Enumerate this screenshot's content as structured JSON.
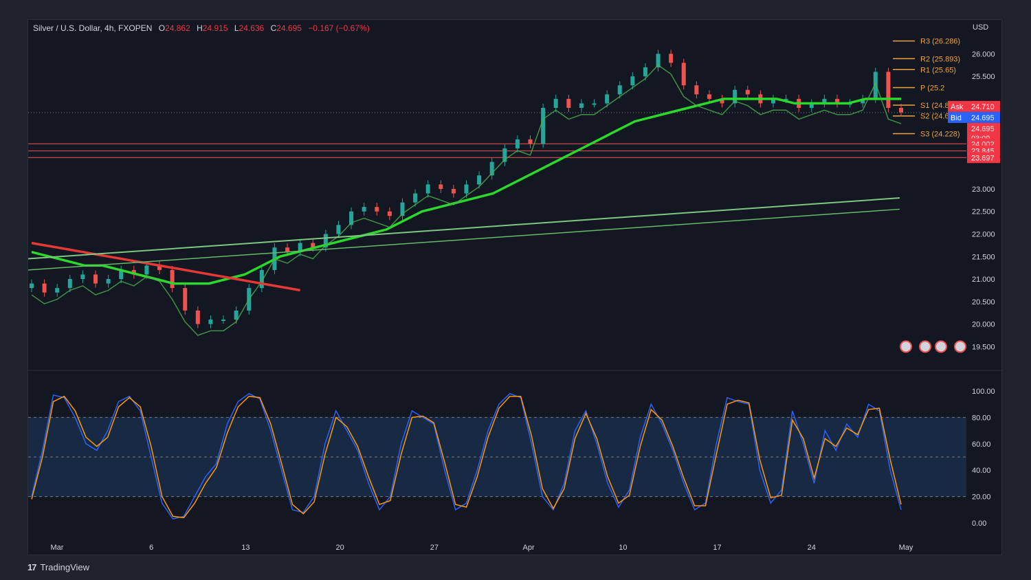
{
  "legend": {
    "symbol": "Silver / U.S. Dollar, 4h, FXOPEN",
    "o_label": "O",
    "o_value": "24.862",
    "h_label": "H",
    "h_value": "24.915",
    "l_label": "L",
    "l_value": "24.636",
    "c_label": "C",
    "c_value": "24.695",
    "change": "−0.167 (−0.67%)"
  },
  "currency": "USD",
  "brand": {
    "logo": "17",
    "name": "TradingView"
  },
  "colors": {
    "background": "#131722",
    "up": "#26a69a",
    "down": "#ef5350",
    "pivot": "#f0a33c",
    "ask": "#f23645",
    "bid": "#2962ff",
    "stoch_k": "#2962ff",
    "stoch_d": "#ff9800"
  },
  "chart_data": [
    {
      "type": "line",
      "title": "Silver / U.S. Dollar, 4h, FXOPEN",
      "x_labels": [
        "Mar",
        "6",
        "13",
        "20",
        "27",
        "Apr",
        "10",
        "17",
        "24",
        "May"
      ],
      "y_ticks": [
        "19.500",
        "20.000",
        "20.500",
        "21.000",
        "21.500",
        "22.000",
        "22.500",
        "23.000",
        "25.500",
        "26.000"
      ],
      "ylim": [
        19.2,
        26.6
      ],
      "price_close": [
        20.9,
        20.7,
        20.8,
        21.0,
        21.1,
        20.9,
        21.0,
        21.2,
        21.1,
        21.3,
        21.2,
        20.8,
        20.3,
        20.0,
        20.1,
        20.1,
        20.3,
        20.8,
        21.2,
        21.7,
        21.6,
        21.8,
        21.7,
        22.0,
        22.2,
        22.5,
        22.6,
        22.5,
        22.4,
        22.7,
        22.9,
        23.1,
        23.0,
        22.9,
        23.1,
        23.3,
        23.6,
        23.9,
        24.1,
        24.0,
        24.8,
        25.0,
        24.8,
        24.9,
        24.9,
        25.1,
        25.3,
        25.5,
        25.7,
        26.0,
        25.8,
        25.3,
        25.1,
        25.0,
        24.9,
        25.2,
        25.1,
        24.9,
        25.0,
        25.0,
        24.8,
        24.9,
        25.0,
        24.9,
        24.9,
        25.0,
        25.6,
        24.8,
        24.7
      ],
      "ema_slow": [
        21.6,
        21.5,
        21.4,
        21.3,
        21.3,
        21.2,
        21.1,
        21.0,
        20.9,
        20.9,
        20.9,
        21.0,
        21.1,
        21.3,
        21.5,
        21.6,
        21.7,
        21.8,
        21.9,
        22.0,
        22.1,
        22.3,
        22.5,
        22.6,
        22.7,
        22.8,
        22.9,
        23.1,
        23.3,
        23.5,
        23.7,
        23.9,
        24.1,
        24.3,
        24.5,
        24.6,
        24.7,
        24.8,
        24.9,
        25.0,
        25.0,
        25.0,
        25.0,
        24.9,
        24.9,
        24.9,
        24.9,
        25.0,
        25.0,
        25.0
      ],
      "sma_long_a": [
        21.45,
        22.8
      ],
      "sma_long_b": [
        21.2,
        22.55
      ],
      "horizontal_levels": [
        "24.002",
        "23.845",
        "23.697"
      ],
      "pivots": [
        {
          "label": "R3 (26.286)",
          "value": 26.286
        },
        {
          "label": "R2 (25.893)",
          "value": 25.893
        },
        {
          "label": "R1 (25.65)",
          "value": 25.65
        },
        {
          "label": "P (25.2",
          "value": 25.25
        },
        {
          "label": "S1 (24.8",
          "value": 24.86
        },
        {
          "label": "S2 (24.621)",
          "value": 24.621
        },
        {
          "label": "S3 (24.228)",
          "value": 24.228
        }
      ],
      "price_tags": [
        {
          "label": "Ask",
          "value": "24.710"
        },
        {
          "label": "Bid",
          "value": "24.695"
        },
        {
          "label": "",
          "value": "24.695",
          "sub": "03:09"
        },
        {
          "label": "",
          "value": "24.002"
        },
        {
          "label": "",
          "value": "23.845"
        },
        {
          "label": "",
          "value": "23.697"
        }
      ]
    },
    {
      "type": "line",
      "title": "",
      "y_ticks": [
        "100.00",
        "80.00",
        "60.00",
        "40.00",
        "20.00",
        "0.00"
      ],
      "ylim": [
        0,
        100
      ],
      "band": [
        20,
        80
      ],
      "series": [
        {
          "values": [
            20,
            55,
            97,
            95,
            80,
            60,
            55,
            70,
            92,
            96,
            85,
            50,
            15,
            3,
            5,
            20,
            35,
            45,
            75,
            92,
            98,
            94,
            70,
            40,
            10,
            8,
            20,
            60,
            85,
            70,
            55,
            30,
            10,
            20,
            60,
            85,
            80,
            75,
            40,
            10,
            15,
            40,
            70,
            90,
            98,
            95,
            60,
            20,
            10,
            30,
            70,
            85,
            60,
            30,
            12,
            25,
            65,
            90,
            75,
            55,
            30,
            10,
            15,
            60,
            95,
            92,
            90,
            40,
            15,
            25,
            85,
            60,
            30,
            70,
            55,
            75,
            65,
            90,
            85,
            40,
            10
          ]
        },
        {
          "values": [
            18,
            50,
            92,
            96,
            85,
            65,
            58,
            65,
            88,
            95,
            88,
            58,
            20,
            5,
            4,
            15,
            30,
            42,
            68,
            88,
            96,
            95,
            75,
            45,
            14,
            7,
            16,
            52,
            80,
            73,
            58,
            35,
            14,
            17,
            52,
            80,
            81,
            76,
            46,
            14,
            12,
            35,
            65,
            87,
            96,
            96,
            66,
            26,
            11,
            26,
            64,
            83,
            64,
            35,
            15,
            21,
            58,
            86,
            78,
            58,
            34,
            13,
            13,
            52,
            90,
            93,
            91,
            48,
            19,
            21,
            78,
            64,
            34,
            64,
            58,
            72,
            67,
            86,
            87,
            48,
            14
          ]
        }
      ]
    }
  ]
}
